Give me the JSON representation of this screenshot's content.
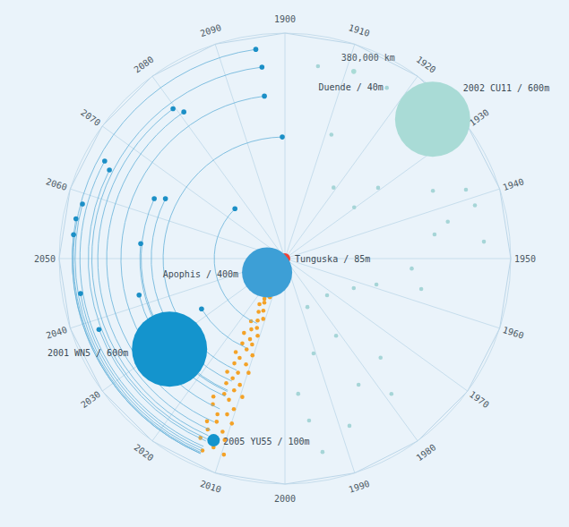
{
  "chart_data": {
    "type": "polar_scatter",
    "xlim": [
      1900,
      2100
    ],
    "xticks": [
      1900,
      1910,
      1920,
      1930,
      1940,
      1950,
      1960,
      1970,
      1980,
      1990,
      2000,
      2010,
      2020,
      2030,
      2040,
      2050,
      2060,
      2070,
      2080,
      2090
    ],
    "ylim": [
      0,
      380000
    ],
    "yticks": [
      {
        "value": 380000,
        "label": "380,000 km"
      }
    ],
    "grid": true,
    "series": [
      {
        "type": "scatter",
        "color": "#a6d5d7",
        "x": [
          1905.4,
          1917.1,
          1919.1,
          1929.3,
          1936.3,
          1938.4,
          1942.9,
          1944.9,
          1947.3,
          1929.7,
          1972.8,
          1962.9,
          1958.8,
          1957.0,
          1981.4,
          1975.6,
          1990.7,
          1978.8,
          1983.2,
          1995.3,
          1988.3,
          1993.9,
          1996.9,
          1986.2,
          1941.3,
          1952.5,
          1911.4
        ],
        "values": [
          329000,
          335000,
          145000,
          197000,
          274000,
          326000,
          281000,
          255000,
          336000,
          145000,
          94000,
          126000,
          160000,
          235000,
          156000,
          232000,
          167000,
          290000,
          246000,
          276000,
          302000,
          332000,
          229000,
          90000,
          332000,
          214000,
          223000
        ]
      },
      {
        "type": "scatter",
        "color": "#f4a227",
        "x": [
          2014.5,
          2016.0,
          2013.0,
          2015.2,
          2012.8,
          2014.0,
          2016.5,
          2013.5,
          2011.8,
          2015.0,
          2013.9,
          2016.2,
          2012.5,
          2014.6,
          2011.0,
          2013.2,
          2015.8,
          2012.2,
          2014.1,
          2010.8,
          2016.0,
          2013.0,
          2011.6,
          2014.8,
          2012.7,
          2010.3,
          2015.4,
          2013.6,
          2011.2,
          2014.3,
          2009.8,
          2012.4,
          2015.0,
          2013.1,
          2010.9,
          2014.0,
          2011.7,
          2009.5,
          2013.4,
          2012.0,
          2015.2,
          2010.4,
          2014.6,
          2011.3,
          2013.0,
          2009.9,
          2012.6,
          2014.2,
          2011.0,
          2013.5,
          2010.2,
          2012.1,
          2014.0,
          2011.5,
          2009.6,
          2012.9
        ],
        "values": [
          15000,
          22000,
          30000,
          38000,
          45000,
          52000,
          58000,
          64000,
          70000,
          76000,
          82000,
          88000,
          95000,
          100000,
          108000,
          114000,
          120000,
          126000,
          132000,
          138000,
          143000,
          148000,
          155000,
          160000,
          166000,
          172000,
          178000,
          184000,
          190000,
          196000,
          202000,
          208000,
          214000,
          220000,
          226000,
          232000,
          238000,
          244000,
          250000,
          256000,
          262000,
          268000,
          274000,
          280000,
          286000,
          292000,
          298000,
          304000,
          310000,
          316000,
          322000,
          328000,
          334000,
          340000,
          346000,
          352000
        ]
      },
      {
        "type": "arc",
        "color": "#1b8fc6",
        "x_start": [
          2013,
          2013,
          2013,
          2013,
          2013,
          2013,
          2013,
          2013,
          2013,
          2013,
          2013,
          2013,
          2013,
          2013,
          2013,
          2013,
          2013,
          2013,
          2013
        ],
        "x": [
          2095.6,
          2096.2,
          2096.0,
          2080.8,
          2079.6,
          2099.3,
          2065.8,
          2064.9,
          2063.7,
          2064.8,
          2058.4,
          2056.0,
          2053.6,
          2075.0,
          2053.3,
          2044.6,
          2042.2,
          2032.7,
          2038.4
        ],
        "values": [
          356000,
          325000,
          276000,
          300000,
          315000,
          205000,
          345000,
          331000,
          242000,
          225000,
          353000,
          358000,
          358000,
          119000,
          244000,
          349000,
          253000,
          164000,
          335000
        ]
      },
      {
        "type": "bubble",
        "colors": [
          "#a9dbd6",
          "#a9dbd6",
          "#ef4136",
          "#3d9fd6",
          "#1494cd",
          "#1494cd"
        ],
        "labels": [
          "Duende / 40m",
          "2002 CU11 / 600m",
          "Tunguska / 85m",
          "Apophis / 400m",
          "2001 WN5 / 600m",
          "2005 YU55 / 100m"
        ],
        "x": [
          1911.2,
          1925.9,
          1908.0,
          2029.0,
          2028.8,
          2011.9
        ],
        "values": [
          336000,
          342000,
          0,
          38000,
          247000,
          329000
        ],
        "sizes": [
          40,
          600,
          85,
          400,
          600,
          100
        ]
      }
    ]
  }
}
